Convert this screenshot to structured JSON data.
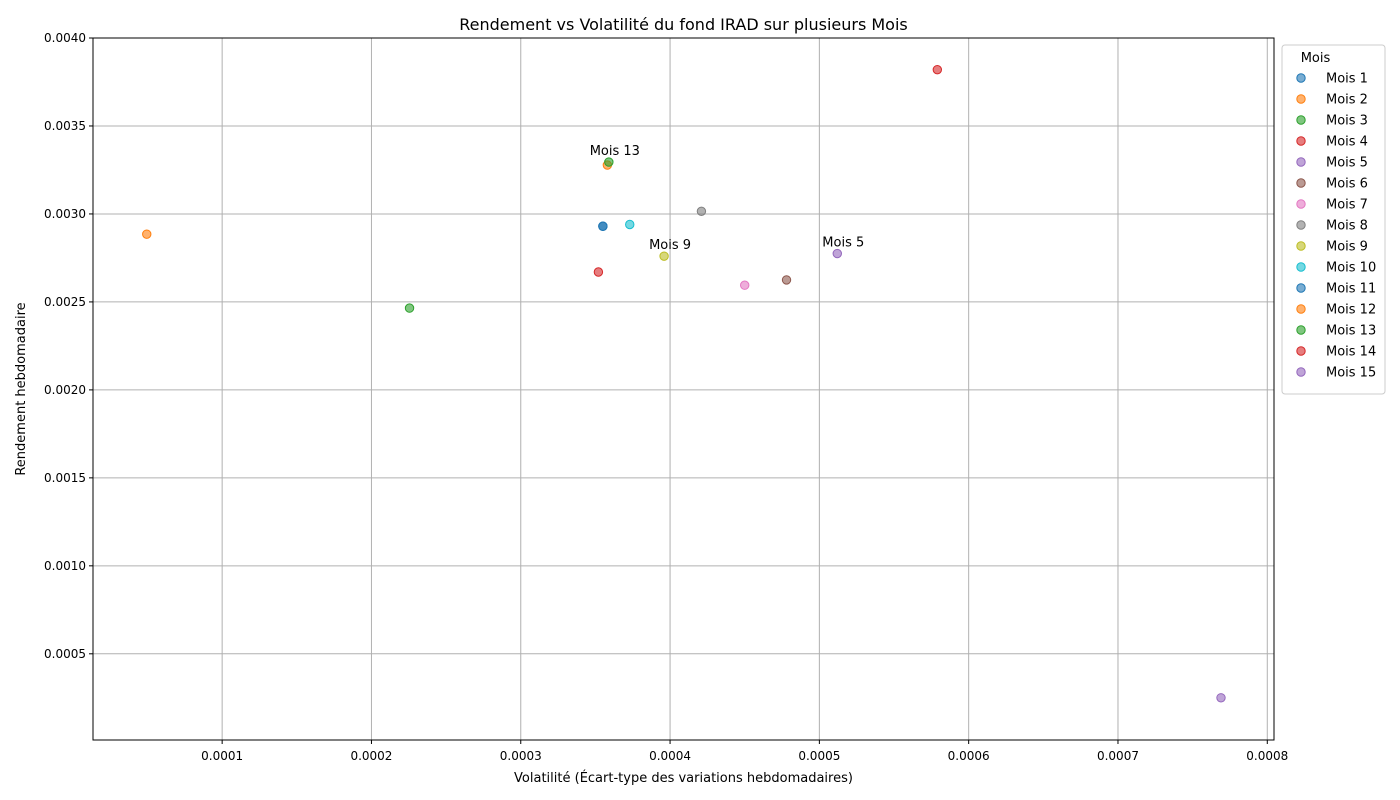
{
  "chart_data": {
    "type": "scatter",
    "title": "Rendement vs Volatilité du fond IRAD sur plusieurs Mois",
    "xlabel": "Volatilité (Écart-type des variations hebdomadaires)",
    "ylabel": "Rendement hebdomadaire",
    "xlim": [
      1.35e-05,
      0.0008045
    ],
    "ylim": [
      1.01e-05,
      0.004
    ],
    "xticks": [
      0.0001,
      0.0002,
      0.0003,
      0.0004,
      0.0005,
      0.0006,
      0.0007,
      0.0008
    ],
    "xtick_labels": [
      "0.0001",
      "0.0002",
      "0.0003",
      "0.0004",
      "0.0005",
      "0.0006",
      "0.0007",
      "0.0008"
    ],
    "yticks": [
      0.0005,
      0.001,
      0.0015,
      0.002,
      0.0025,
      0.003,
      0.0035,
      0.004
    ],
    "ytick_labels": [
      "0.0005",
      "0.0010",
      "0.0015",
      "0.0020",
      "0.0025",
      "0.0030",
      "0.0035",
      "0.0040"
    ],
    "grid": true,
    "legend": {
      "title": "Mois",
      "placement": "outside-right-top"
    },
    "series": [
      {
        "name": "Mois 1",
        "color": "#1f77b4",
        "x": 0.000355,
        "y": 0.00293
      },
      {
        "name": "Mois 2",
        "color": "#ff7f0e",
        "x": 4.95e-05,
        "y": 0.002885
      },
      {
        "name": "Mois 3",
        "color": "#2ca02c",
        "x": 0.0002255,
        "y": 0.002465
      },
      {
        "name": "Mois 4",
        "color": "#d62728",
        "x": 0.000352,
        "y": 0.00267
      },
      {
        "name": "Mois 5",
        "color": "#9467bd",
        "x": 0.000512,
        "y": 0.002775
      },
      {
        "name": "Mois 6",
        "color": "#8c564b",
        "x": 0.000478,
        "y": 0.002625
      },
      {
        "name": "Mois 7",
        "color": "#e377c2",
        "x": 0.00045,
        "y": 0.002595
      },
      {
        "name": "Mois 8",
        "color": "#7f7f7f",
        "x": 0.000421,
        "y": 0.003015
      },
      {
        "name": "Mois 9",
        "color": "#bcbd22",
        "x": 0.000396,
        "y": 0.00276
      },
      {
        "name": "Mois 10",
        "color": "#17becf",
        "x": 0.000373,
        "y": 0.00294
      },
      {
        "name": "Mois 11",
        "color": "#1f77b4",
        "x": 0.000355,
        "y": 0.00293
      },
      {
        "name": "Mois 12",
        "color": "#ff7f0e",
        "x": 0.000358,
        "y": 0.003278
      },
      {
        "name": "Mois 13",
        "color": "#2ca02c",
        "x": 0.000359,
        "y": 0.003295
      },
      {
        "name": "Mois 14",
        "color": "#d62728",
        "x": 0.000579,
        "y": 0.00382
      },
      {
        "name": "Mois 15",
        "color": "#9467bd",
        "x": 0.000769,
        "y": 0.00025
      }
    ],
    "annotations": [
      {
        "text": "Mois 13",
        "x": 0.000359,
        "y": 0.003295
      },
      {
        "text": "Mois 9",
        "x": 0.000396,
        "y": 0.00276
      },
      {
        "text": "Mois 5",
        "x": 0.000512,
        "y": 0.002775
      }
    ]
  }
}
